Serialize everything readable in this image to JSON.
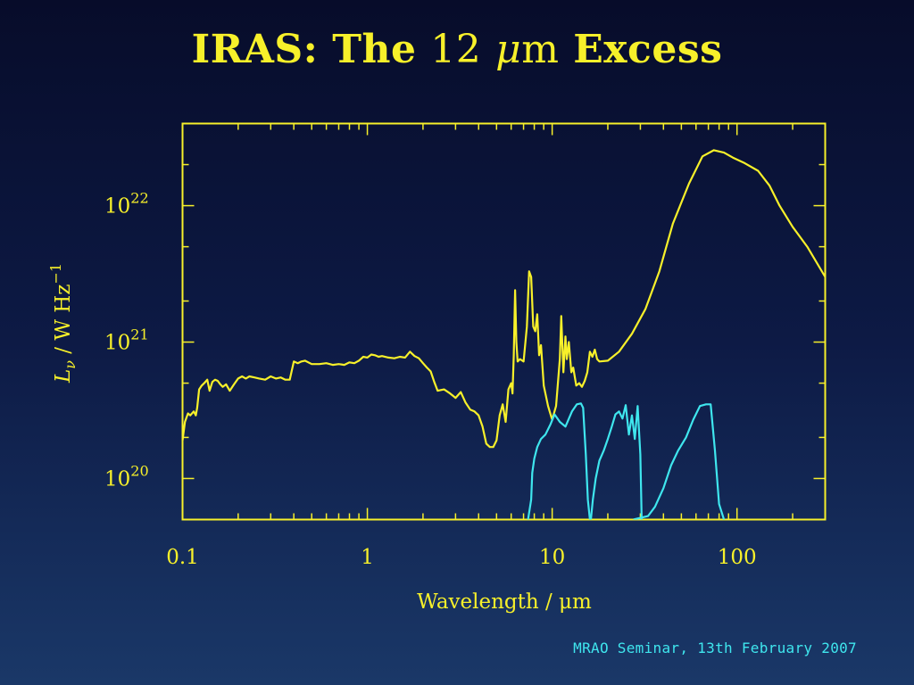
{
  "slide": {
    "title_prefix": "IRAS: The ",
    "title_number": "12",
    "title_mu": "μ",
    "title_m": "m",
    "title_suffix": " Excess",
    "footer": "MRAO Seminar, 13th February 2007"
  },
  "colors": {
    "text": "#f7f02a",
    "axes": "#f7f02a",
    "sed": "#f7f02a",
    "filters": "#3fe6ee"
  },
  "chart_data": {
    "type": "line",
    "title": "",
    "xlabel": "Wavelength / μm",
    "ylabel": "L_ν / W Hz^-1",
    "x_scale": "log",
    "y_scale": "log",
    "xlim": [
      0.1,
      300
    ],
    "ylim": [
      5e+19,
      4e+22
    ],
    "x_ticks": [
      {
        "value": 0.1,
        "label": "0.1"
      },
      {
        "value": 1,
        "label": "1"
      },
      {
        "value": 10,
        "label": "10"
      },
      {
        "value": 100,
        "label": "100"
      }
    ],
    "y_ticks": [
      {
        "value": 1e+20,
        "base": "10",
        "exp": "20"
      },
      {
        "value": 1e+21,
        "base": "10",
        "exp": "21"
      },
      {
        "value": 1e+22,
        "base": "10",
        "exp": "22"
      }
    ],
    "grid": false,
    "series": [
      {
        "role": "sed",
        "x": [
          0.1,
          0.103,
          0.107,
          0.11,
          0.115,
          0.118,
          0.12,
          0.123,
          0.127,
          0.131,
          0.136,
          0.14,
          0.145,
          0.15,
          0.155,
          0.16,
          0.165,
          0.172,
          0.18,
          0.19,
          0.2,
          0.21,
          0.22,
          0.23,
          0.245,
          0.26,
          0.28,
          0.3,
          0.32,
          0.34,
          0.36,
          0.38,
          0.4,
          0.42,
          0.44,
          0.46,
          0.5,
          0.55,
          0.6,
          0.65,
          0.7,
          0.75,
          0.8,
          0.85,
          0.9,
          0.95,
          1.0,
          1.05,
          1.1,
          1.15,
          1.2,
          1.3,
          1.4,
          1.5,
          1.6,
          1.7,
          1.8,
          1.9,
          2.0,
          2.1,
          2.2,
          2.3,
          2.4,
          2.6,
          2.8,
          3.0,
          3.2,
          3.4,
          3.6,
          3.8,
          4.0,
          4.2,
          4.4,
          4.6,
          4.8,
          5.0,
          5.2,
          5.4,
          5.6,
          5.8,
          6.0,
          6.1,
          6.2,
          6.3,
          6.4,
          6.5,
          6.7,
          7.0,
          7.3,
          7.5,
          7.7,
          7.9,
          8.1,
          8.3,
          8.5,
          8.7,
          9.0,
          9.5,
          10.0,
          10.5,
          11.0,
          11.2,
          11.5,
          11.8,
          12.0,
          12.3,
          12.7,
          13.0,
          13.5,
          14.0,
          14.5,
          15.0,
          15.5,
          16.0,
          16.5,
          17.0,
          17.5,
          18.0,
          20,
          23,
          27,
          32,
          38,
          45,
          55,
          65,
          75,
          85,
          95,
          110,
          130,
          150,
          170,
          200,
          240,
          300
        ],
        "y": [
          1.9e+20,
          2.6e+20,
          3e+20,
          2.9e+20,
          3.1e+20,
          2.9e+20,
          3.3e+20,
          4.5e+20,
          4.8e+20,
          5e+20,
          5.3e+20,
          4.4e+20,
          5.1e+20,
          5.3e+20,
          5.2e+20,
          4.9e+20,
          4.7e+20,
          4.9e+20,
          4.4e+20,
          4.9e+20,
          5.4e+20,
          5.6e+20,
          5.4e+20,
          5.6e+20,
          5.5e+20,
          5.4e+20,
          5.3e+20,
          5.6e+20,
          5.4e+20,
          5.5e+20,
          5.3e+20,
          5.3e+20,
          7.2e+20,
          7e+20,
          7.2e+20,
          7.3e+20,
          6.9e+20,
          6.9e+20,
          7e+20,
          6.8e+20,
          6.9e+20,
          6.8e+20,
          7.1e+20,
          7e+20,
          7.3e+20,
          7.8e+20,
          7.7e+20,
          8.1e+20,
          8e+20,
          7.8e+20,
          7.9e+20,
          7.7e+20,
          7.6e+20,
          7.8e+20,
          7.7e+20,
          8.5e+20,
          7.9e+20,
          7.6e+20,
          7e+20,
          6.5e+20,
          6.1e+20,
          5.1e+20,
          4.4e+20,
          4.5e+20,
          4.2e+20,
          3.9e+20,
          4.3e+20,
          3.6e+20,
          3.2e+20,
          3.1e+20,
          2.9e+20,
          2.4e+20,
          1.8e+20,
          1.7e+20,
          1.7e+20,
          1.9e+20,
          2.9e+20,
          3.5e+20,
          2.6e+20,
          4.5e+20,
          5e+20,
          4.2e+20,
          8e+20,
          2.4e+21,
          1e+21,
          7.2e+20,
          7.5e+20,
          7.2e+20,
          1.3e+21,
          3.3e+21,
          3e+21,
          1.3e+21,
          1.2e+21,
          1.6e+21,
          8e+20,
          9.5e+20,
          4.8e+20,
          3.4e+20,
          2.7e+20,
          3.4e+20,
          7.5e+20,
          1.55e+21,
          6e+20,
          1.1e+21,
          7.5e+20,
          1e+21,
          6e+20,
          6.5e+20,
          4.8e+20,
          5e+20,
          4.7e+20,
          5.2e+20,
          6e+20,
          8.5e+20,
          7.8e+20,
          8.8e+20,
          7.5e+20,
          7.2e+20,
          7.3e+20,
          8.5e+20,
          1.15e+21,
          1.75e+21,
          3.3e+21,
          7.4e+21,
          1.45e+22,
          2.3e+22,
          2.55e+22,
          2.45e+22,
          2.25e+22,
          2.05e+22,
          1.8e+22,
          1.4e+22,
          1e+22,
          7e+21,
          5e+21,
          3e+21
        ]
      },
      {
        "role": "filter",
        "x": [
          7.4,
          7.7,
          7.8,
          8.0,
          8.3,
          8.7,
          9.2,
          9.8,
          10.3,
          11.0,
          11.8,
          12.8,
          13.6,
          14.3,
          14.7,
          15.2,
          15.6,
          16.0
        ],
        "y": [
          5e+19,
          7e+19,
          1.1e+20,
          1.4e+20,
          1.7e+20,
          1.95e+20,
          2.1e+20,
          2.5e+20,
          2.95e+20,
          2.6e+20,
          2.4e+20,
          3.1e+20,
          3.5e+20,
          3.55e+20,
          3.3e+20,
          1.5e+20,
          7e+19,
          5e+19
        ]
      },
      {
        "role": "filter",
        "x": [
          16.2,
          16.6,
          17.2,
          18.0,
          19.0,
          20.0,
          21.0,
          22.0,
          23.0,
          24.0,
          25.0,
          26.0,
          27.0,
          28.0,
          29.0,
          30.0,
          30.5
        ],
        "y": [
          5e+19,
          7e+19,
          1e+20,
          1.35e+20,
          1.6e+20,
          1.95e+20,
          2.4e+20,
          2.95e+20,
          3.1e+20,
          2.75e+20,
          3.45e+20,
          2.1e+20,
          2.9e+20,
          1.95e+20,
          3.4e+20,
          1.5e+20,
          5e+19
        ]
      },
      {
        "role": "filter",
        "x": [
          27.5,
          33,
          36,
          40,
          44,
          48,
          53,
          58,
          63,
          68,
          72,
          76,
          80,
          85
        ],
        "y": [
          5e+19,
          5.3e+19,
          6.2e+19,
          8.5e+19,
          1.25e+20,
          1.6e+20,
          2e+20,
          2.7e+20,
          3.4e+20,
          3.5e+20,
          3.5e+20,
          1.6e+20,
          6.5e+19,
          5e+19
        ]
      }
    ]
  }
}
